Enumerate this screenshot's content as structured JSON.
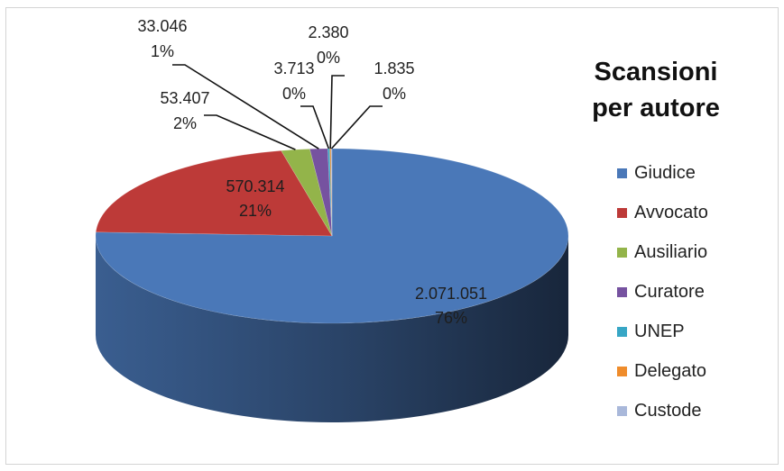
{
  "chart_data": {
    "type": "pie",
    "title_lines": [
      "Scansioni",
      "per autore"
    ],
    "slices": [
      {
        "name": "Giudice",
        "value": 2071051,
        "value_label": "2.071.051",
        "pct_label": "76%",
        "color": "#4a78b8"
      },
      {
        "name": "Avvocato",
        "value": 570314,
        "value_label": "570.314",
        "pct_label": "21%",
        "color": "#bd3a38"
      },
      {
        "name": "Ausiliario",
        "value": 53407,
        "value_label": "53.407",
        "pct_label": "2%",
        "color": "#93b44a"
      },
      {
        "name": "Curatore",
        "value": 33046,
        "value_label": "33.046",
        "pct_label": "1%",
        "color": "#7652a0"
      },
      {
        "name": "UNEP",
        "value": 3713,
        "value_label": "3.713",
        "pct_label": "0%",
        "color": "#37a6c5"
      },
      {
        "name": "Delegato",
        "value": 2380,
        "value_label": "2.380",
        "pct_label": "0%",
        "color": "#ef8c2b"
      },
      {
        "name": "Custode",
        "value": 1835,
        "value_label": "1.835",
        "pct_label": "0%",
        "color": "#a9b8da"
      }
    ],
    "legend_position": "right",
    "style": "3d-pie"
  }
}
